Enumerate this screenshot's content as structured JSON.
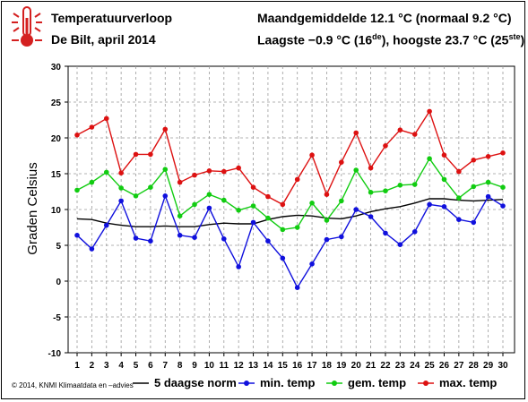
{
  "header": {
    "title": "Temperatuurverloop",
    "subtitle": "De Bilt, april 2014",
    "month_avg": "Maandgemiddelde 12.1 °C (normaal 9.2 °C)",
    "extremes_lowest": "Laagste −0.9 °C (16",
    "extremes_lowest_sup": "de",
    "extremes_highest": "), hoogste 23.7 °C (25",
    "extremes_highest_sup": "ste",
    "extremes_end": ")"
  },
  "icon": "thermometer-icon",
  "footer": {
    "copyright": "© 2014, KNMI Klimaatdata en –advies"
  },
  "chart_data": {
    "type": "line",
    "ylabel": "Graden Celsius",
    "xlabel": "",
    "ylim": [
      -10,
      30
    ],
    "yticks": [
      -10,
      -5,
      0,
      5,
      10,
      15,
      20,
      25,
      30
    ],
    "x": [
      1,
      2,
      3,
      4,
      5,
      6,
      7,
      8,
      9,
      10,
      11,
      12,
      13,
      14,
      15,
      16,
      17,
      18,
      19,
      20,
      21,
      22,
      23,
      24,
      25,
      26,
      27,
      28,
      29,
      30
    ],
    "grid": true,
    "legend_position": "bottom",
    "series": [
      {
        "name": "5 daagse norm",
        "color": "#000000",
        "markers": false,
        "values": [
          8.7,
          8.6,
          8.1,
          7.8,
          7.6,
          7.6,
          7.7,
          7.6,
          7.6,
          7.9,
          8.1,
          8.0,
          8.0,
          8.6,
          9.0,
          9.2,
          9.1,
          8.8,
          8.7,
          9.1,
          9.7,
          10.1,
          10.4,
          10.9,
          11.5,
          11.5,
          11.3,
          11.2,
          11.3,
          11.4
        ]
      },
      {
        "name": "min. temp",
        "color": "#1010dd",
        "markers": true,
        "values": [
          6.4,
          4.5,
          7.8,
          11.2,
          6.0,
          5.6,
          11.9,
          6.4,
          6.1,
          10.2,
          5.9,
          2.0,
          8.2,
          5.6,
          3.2,
          -0.9,
          2.4,
          5.8,
          6.2,
          10.0,
          9.0,
          6.7,
          5.1,
          6.9,
          10.7,
          10.4,
          8.6,
          8.2,
          11.8,
          10.5
        ]
      },
      {
        "name": "gem. temp",
        "color": "#11cc11",
        "markers": true,
        "values": [
          12.7,
          13.8,
          15.2,
          13.0,
          11.9,
          13.1,
          15.6,
          9.1,
          10.7,
          12.1,
          11.3,
          9.9,
          10.5,
          8.8,
          7.2,
          7.5,
          10.9,
          8.5,
          11.2,
          15.5,
          12.4,
          12.6,
          13.4,
          13.5,
          17.1,
          14.2,
          11.6,
          13.2,
          13.8,
          13.1
        ]
      },
      {
        "name": "max. temp",
        "color": "#dd1111",
        "markers": true,
        "values": [
          20.4,
          21.5,
          22.7,
          15.1,
          17.7,
          17.7,
          21.2,
          13.8,
          14.8,
          15.4,
          15.3,
          15.8,
          13.1,
          11.8,
          10.7,
          14.2,
          17.6,
          12.1,
          16.6,
          20.7,
          15.8,
          18.9,
          21.1,
          20.5,
          23.7,
          17.6,
          15.3,
          16.9,
          17.4,
          17.9
        ]
      }
    ]
  }
}
